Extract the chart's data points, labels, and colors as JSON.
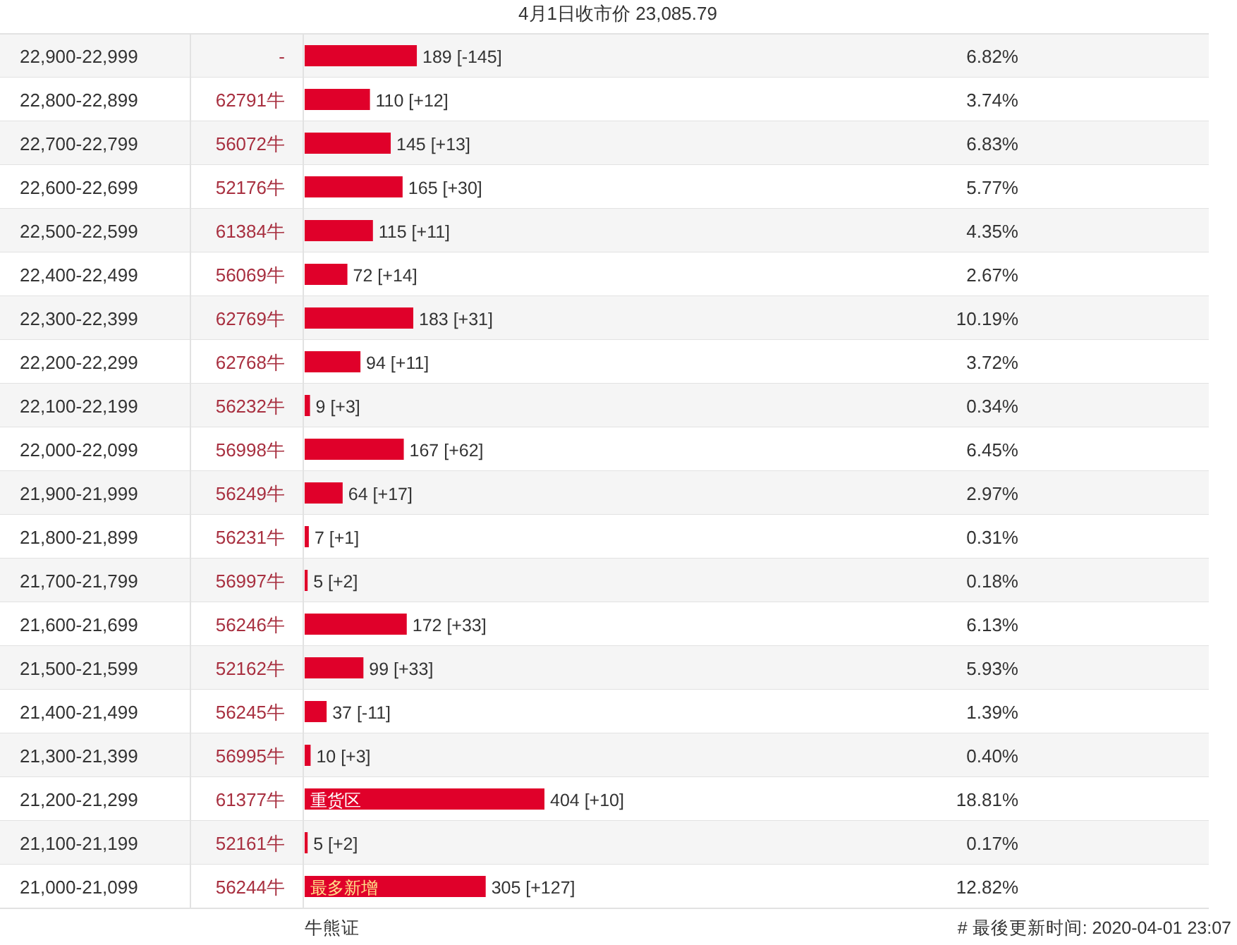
{
  "chart_data": {
    "type": "bar",
    "orientation": "horizontal",
    "title": "4月1日收市价 23,085.79",
    "categories": [
      "22,900-22,999",
      "22,800-22,899",
      "22,700-22,799",
      "22,600-22,699",
      "22,500-22,599",
      "22,400-22,499",
      "22,300-22,399",
      "22,200-22,299",
      "22,100-22,199",
      "22,000-22,099",
      "21,900-21,999",
      "21,800-21,899",
      "21,700-21,799",
      "21,600-21,699",
      "21,500-21,599",
      "21,400-21,499",
      "21,300-21,399",
      "21,200-21,299",
      "21,100-21,199",
      "21,000-21,099"
    ],
    "y2_categories": [
      "-",
      "62791牛",
      "56072牛",
      "52176牛",
      "61384牛",
      "56069牛",
      "62769牛",
      "62768牛",
      "56232牛",
      "56998牛",
      "56249牛",
      "56231牛",
      "56997牛",
      "56246牛",
      "52162牛",
      "56245牛",
      "56995牛",
      "61377牛",
      "52161牛",
      "56244牛"
    ],
    "series": [
      {
        "color": "#e0002a",
        "values": [
          189,
          110,
          145,
          165,
          115,
          72,
          183,
          94,
          9,
          167,
          64,
          7,
          5,
          172,
          99,
          37,
          10,
          404,
          5,
          305
        ],
        "value_labels": [
          "189 [-145]",
          "110 [+12]",
          "145 [+13]",
          "165 [+30]",
          "115 [+11]",
          "72 [+14]",
          "183 [+31]",
          "94 [+11]",
          "9 [+3]",
          "167 [+62]",
          "64 [+17]",
          "7 [+1]",
          "5 [+2]",
          "172 [+33]",
          "99 [+33]",
          "37 [-11]",
          "10 [+3]",
          "404 [+10]",
          "5 [+2]",
          "305 [+127]"
        ]
      }
    ],
    "annotations": [
      "重货区",
      "最多新增",
      "牛熊证",
      "# 最後更新时间: 2020-04-01 23:07",
      "6.82%",
      "3.74%",
      "6.83%",
      "5.77%",
      "4.35%",
      "2.67%",
      "10.19%",
      "3.72%",
      "0.34%",
      "6.45%",
      "2.97%",
      "0.31%",
      "0.18%",
      "6.13%",
      "5.93%",
      "1.39%",
      "0.40%",
      "18.81%",
      "0.17%",
      "12.82%"
    ],
    "grid": "y"
  }
}
